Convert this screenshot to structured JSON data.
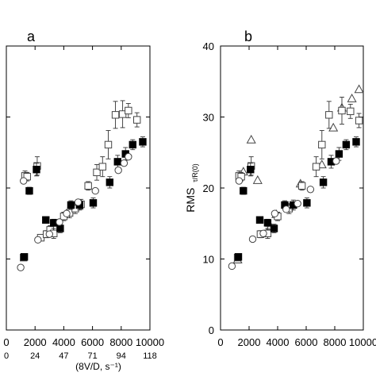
{
  "chart_data": [
    {
      "type": "scatter",
      "panel_label": "a",
      "xlim": [
        0,
        10000
      ],
      "ylim": [
        0,
        40
      ],
      "x_ticks": [
        "0",
        "2000",
        "4000",
        "6000",
        "8000",
        "10000"
      ],
      "x_secondary_ticks": [
        "0",
        "24",
        "47",
        "71",
        "94",
        "118"
      ],
      "x_secondary_tick_values": [
        0,
        2000,
        4000,
        6000,
        8000,
        10000
      ],
      "xlabel_secondary": "(8V/D, s⁻¹)",
      "grid": false,
      "series": [
        {
          "marker": "square-open",
          "points": [
            {
              "x": 1200,
              "y": 10.2
            },
            {
              "x": 1300,
              "y": 21.7
            },
            {
              "x": 1450,
              "y": 21.6
            },
            {
              "x": 2150,
              "y": 23.1
            },
            {
              "x": 2400,
              "y": 13.0
            },
            {
              "x": 2800,
              "y": 13.5
            },
            {
              "x": 3050,
              "y": 14.1
            },
            {
              "x": 3300,
              "y": 13.6
            },
            {
              "x": 4000,
              "y": 16.0
            },
            {
              "x": 4400,
              "y": 16.5
            },
            {
              "x": 4800,
              "y": 17.1
            },
            {
              "x": 5200,
              "y": 17.7
            },
            {
              "x": 5700,
              "y": 20.3
            },
            {
              "x": 6300,
              "y": 22.2
            },
            {
              "x": 6700,
              "y": 23.0
            },
            {
              "x": 7100,
              "y": 26.1
            },
            {
              "x": 7600,
              "y": 30.3
            },
            {
              "x": 8100,
              "y": 30.4
            },
            {
              "x": 8500,
              "y": 30.9
            },
            {
              "x": 9100,
              "y": 29.6
            }
          ],
          "y_error": [
            0.4,
            0.7,
            0.6,
            1.3,
            0.4,
            0.5,
            0.6,
            0.7,
            0.6,
            0.7,
            0.7,
            0.7,
            0.6,
            1.1,
            1.4,
            2.0,
            1.9,
            1.9,
            1.0,
            1.0
          ]
        },
        {
          "marker": "square-filled",
          "points": [
            {
              "x": 1250,
              "y": 10.3
            },
            {
              "x": 1600,
              "y": 19.6
            },
            {
              "x": 2100,
              "y": 22.6
            },
            {
              "x": 2750,
              "y": 15.5
            },
            {
              "x": 3300,
              "y": 15.1
            },
            {
              "x": 3750,
              "y": 14.3
            },
            {
              "x": 4500,
              "y": 17.6
            },
            {
              "x": 5100,
              "y": 17.6
            },
            {
              "x": 6050,
              "y": 17.9
            },
            {
              "x": 7200,
              "y": 20.8
            },
            {
              "x": 7750,
              "y": 23.7
            },
            {
              "x": 8300,
              "y": 24.8
            },
            {
              "x": 8800,
              "y": 26.1
            },
            {
              "x": 9500,
              "y": 26.5
            }
          ],
          "y_error": [
            0.4,
            0.5,
            0.9,
            0.4,
            0.5,
            0.6,
            0.6,
            0.7,
            0.7,
            0.8,
            0.9,
            0.9,
            0.7,
            0.7
          ]
        },
        {
          "marker": "circle-open",
          "points": [
            {
              "x": 1000,
              "y": 8.8
            },
            {
              "x": 1200,
              "y": 21.0
            },
            {
              "x": 2200,
              "y": 12.7
            },
            {
              "x": 3000,
              "y": 13.5
            },
            {
              "x": 3700,
              "y": 15.2
            },
            {
              "x": 4200,
              "y": 16.4
            },
            {
              "x": 5000,
              "y": 18.0
            },
            {
              "x": 6200,
              "y": 19.6
            },
            {
              "x": 7800,
              "y": 22.5
            },
            {
              "x": 8200,
              "y": 23.5
            },
            {
              "x": 8500,
              "y": 24.4
            }
          ],
          "y_error": []
        }
      ]
    },
    {
      "type": "scatter",
      "panel_label": "b",
      "xlim": [
        0,
        10000
      ],
      "ylim": [
        0,
        40
      ],
      "x_ticks": [
        "0",
        "2000",
        "4000",
        "6000",
        "8000",
        "10000"
      ],
      "y_ticks": [
        "0",
        "10",
        "20",
        "30",
        "40"
      ],
      "ylabel_main": "RMS",
      "ylabel_sub": "τ/R(0)",
      "grid": false,
      "series": [
        {
          "marker": "triangle-open",
          "points": [
            {
              "x": 1200,
              "y": 9.9
            },
            {
              "x": 1600,
              "y": 22.3
            },
            {
              "x": 2150,
              "y": 26.8
            },
            {
              "x": 2600,
              "y": 21.1
            },
            {
              "x": 3500,
              "y": 14.6
            },
            {
              "x": 3900,
              "y": 16.3
            },
            {
              "x": 5600,
              "y": 20.6
            },
            {
              "x": 7100,
              "y": 23.3
            },
            {
              "x": 7900,
              "y": 28.5
            },
            {
              "x": 8500,
              "y": 31.3
            },
            {
              "x": 9200,
              "y": 32.6
            },
            {
              "x": 9700,
              "y": 33.9
            }
          ],
          "y_error": []
        },
        {
          "marker": "square-open",
          "points": [
            {
              "x": 1200,
              "y": 10.2
            },
            {
              "x": 1300,
              "y": 21.7
            },
            {
              "x": 1450,
              "y": 21.6
            },
            {
              "x": 2150,
              "y": 23.1
            },
            {
              "x": 2800,
              "y": 13.5
            },
            {
              "x": 3300,
              "y": 13.6
            },
            {
              "x": 4000,
              "y": 16.0
            },
            {
              "x": 4800,
              "y": 17.1
            },
            {
              "x": 5700,
              "y": 20.3
            },
            {
              "x": 6700,
              "y": 23.0
            },
            {
              "x": 7100,
              "y": 26.1
            },
            {
              "x": 7600,
              "y": 30.3
            },
            {
              "x": 8500,
              "y": 30.9
            },
            {
              "x": 9100,
              "y": 30.8
            },
            {
              "x": 9700,
              "y": 29.5
            }
          ],
          "y_error": [
            0.4,
            0.7,
            0.6,
            1.3,
            0.5,
            0.7,
            0.6,
            0.7,
            0.6,
            1.4,
            2.0,
            1.9,
            1.9,
            1.0,
            1.0
          ]
        },
        {
          "marker": "square-filled",
          "points": [
            {
              "x": 1250,
              "y": 10.3
            },
            {
              "x": 1600,
              "y": 19.6
            },
            {
              "x": 2100,
              "y": 22.6
            },
            {
              "x": 2750,
              "y": 15.5
            },
            {
              "x": 3300,
              "y": 15.1
            },
            {
              "x": 3750,
              "y": 14.3
            },
            {
              "x": 4500,
              "y": 17.6
            },
            {
              "x": 5100,
              "y": 17.6
            },
            {
              "x": 6050,
              "y": 17.9
            },
            {
              "x": 7200,
              "y": 20.8
            },
            {
              "x": 7750,
              "y": 23.7
            },
            {
              "x": 8300,
              "y": 24.8
            },
            {
              "x": 8800,
              "y": 26.1
            },
            {
              "x": 9500,
              "y": 26.5
            }
          ],
          "y_error": [
            0.4,
            0.5,
            0.9,
            0.4,
            0.5,
            0.6,
            0.6,
            0.7,
            0.7,
            0.8,
            0.9,
            0.9,
            0.7,
            0.7
          ]
        },
        {
          "marker": "circle-open",
          "points": [
            {
              "x": 800,
              "y": 9.0
            },
            {
              "x": 1300,
              "y": 21.0
            },
            {
              "x": 2250,
              "y": 12.8
            },
            {
              "x": 3000,
              "y": 13.6
            },
            {
              "x": 3800,
              "y": 16.4
            },
            {
              "x": 4600,
              "y": 17.0
            },
            {
              "x": 5400,
              "y": 17.8
            },
            {
              "x": 6300,
              "y": 19.8
            },
            {
              "x": 8100,
              "y": 23.8
            }
          ],
          "y_error": []
        }
      ]
    }
  ]
}
